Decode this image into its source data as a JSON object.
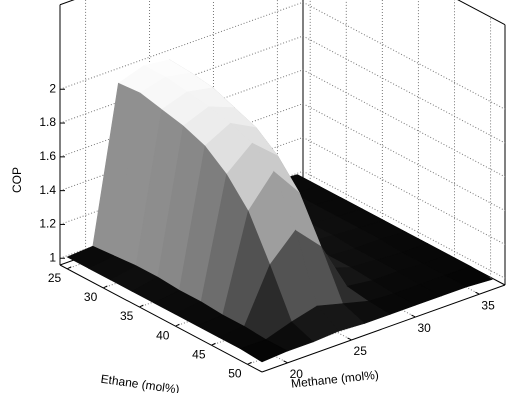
{
  "chart_data": {
    "type": "surface",
    "xlabel": "Methane (mol%)",
    "ylabel": "Ethane (mol%)",
    "zlabel": "COP",
    "x": [
      18,
      20,
      22,
      24,
      26,
      28,
      30,
      32,
      34,
      36
    ],
    "y": [
      25,
      28,
      31,
      34,
      37,
      40,
      43,
      46,
      49,
      52
    ],
    "z": [
      [
        1.03,
        1.04,
        1.95,
        2.0,
        1.98,
        1.4,
        1.05,
        1.05,
        1.04,
        1.03
      ],
      [
        1.03,
        1.05,
        1.96,
        2.0,
        1.97,
        1.35,
        1.06,
        1.05,
        1.04,
        1.03
      ],
      [
        1.03,
        1.06,
        1.93,
        1.98,
        1.95,
        1.3,
        1.07,
        1.05,
        1.04,
        1.03
      ],
      [
        1.03,
        1.06,
        1.9,
        1.96,
        1.9,
        1.25,
        1.07,
        1.05,
        1.04,
        1.03
      ],
      [
        1.03,
        1.05,
        1.85,
        1.93,
        1.85,
        1.2,
        1.06,
        1.05,
        1.04,
        1.03
      ],
      [
        1.03,
        1.05,
        1.75,
        1.88,
        1.75,
        1.15,
        1.05,
        1.04,
        1.04,
        1.03
      ],
      [
        1.03,
        1.04,
        1.6,
        1.78,
        1.6,
        1.1,
        1.05,
        1.04,
        1.03,
        1.03
      ],
      [
        1.03,
        1.04,
        1.35,
        1.5,
        1.35,
        1.06,
        1.04,
        1.04,
        1.03,
        1.03
      ],
      [
        1.03,
        1.03,
        1.08,
        1.12,
        1.08,
        1.04,
        1.03,
        1.03,
        1.03,
        1.03
      ],
      [
        1.02,
        1.03,
        1.03,
        1.04,
        1.03,
        1.03,
        1.03,
        1.03,
        1.03,
        1.02
      ]
    ],
    "xlim": [
      18,
      37
    ],
    "ylim": [
      24,
      52
    ],
    "zlim": [
      0.96,
      2.5
    ],
    "xticks": [
      20,
      25,
      30,
      35
    ],
    "yticks": [
      25,
      30,
      35,
      40,
      45,
      50
    ],
    "zticks": [
      1,
      1.2,
      1.4,
      1.6,
      1.8,
      2
    ],
    "colormap": "gray",
    "grid": true
  }
}
